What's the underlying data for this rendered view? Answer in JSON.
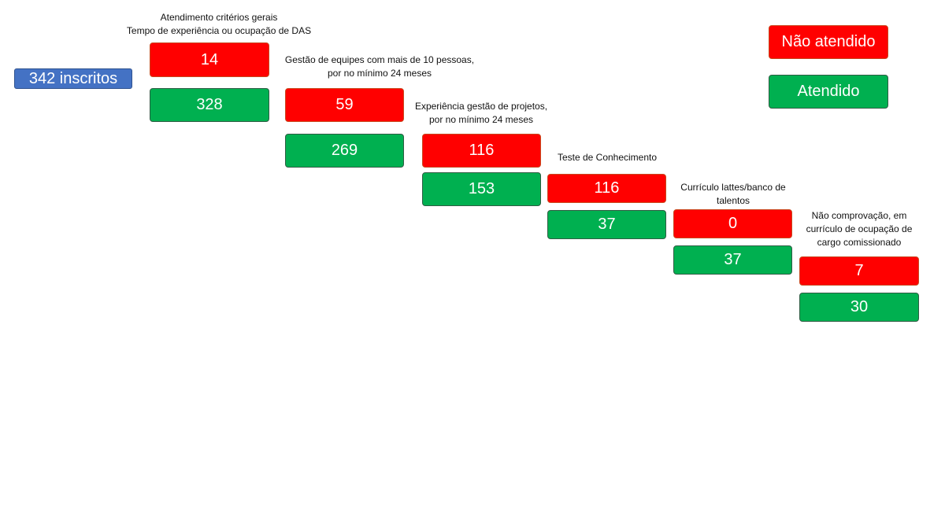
{
  "start": {
    "label": "342 inscritos"
  },
  "legend": {
    "not_met": "Não atendido",
    "met": "Atendido"
  },
  "colors": {
    "not_met": "#ff0000",
    "met": "#00b050",
    "start": "#4472c4"
  },
  "steps": [
    {
      "title_lines": [
        "Atendimento critérios gerais",
        "Tempo de experiência ou ocupação de DAS"
      ],
      "not_met": "14",
      "met": "328"
    },
    {
      "title_lines": [
        "Gestão de equipes com mais de 10 pessoas,",
        "por no mínimo 24 meses"
      ],
      "not_met": "59",
      "met": "269"
    },
    {
      "title_lines": [
        "Experiência gestão de projetos,",
        "por no mínimo 24 meses"
      ],
      "not_met": "116",
      "met": "153"
    },
    {
      "title_lines": [
        "Teste de Conhecimento"
      ],
      "not_met": "116",
      "met": "37"
    },
    {
      "title_lines": [
        "Currículo lattes/banco de",
        "talentos"
      ],
      "not_met": "0",
      "met": "37"
    },
    {
      "title_lines": [
        "Não comprovação, em",
        "currículo de ocupação de",
        "cargo comissionado"
      ],
      "not_met": "7",
      "met": "30"
    }
  ]
}
